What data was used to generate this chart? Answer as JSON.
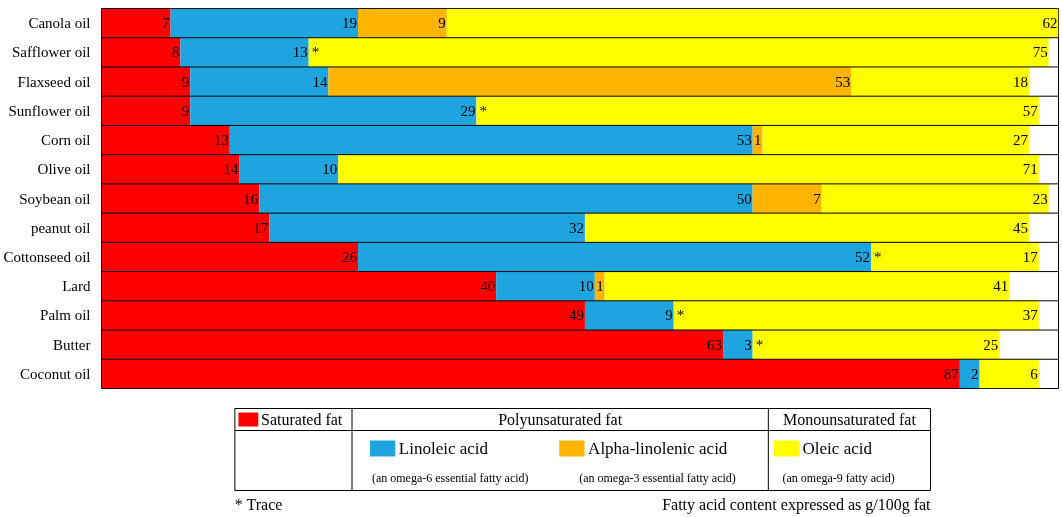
{
  "chart_data": {
    "type": "bar",
    "stacked": true,
    "orientation": "horizontal",
    "data_labels": true,
    "categories": [
      "Canola oil",
      "Safflower oil",
      "Flaxseed oil",
      "Sunflower oil",
      "Corn oil",
      "Olive oil",
      "Soybean oil",
      "peanut oil",
      "Cottonseed oil",
      "Lard",
      "Palm oil",
      "Butter",
      "Coconut oil"
    ],
    "series": [
      {
        "name": "Saturated fat",
        "color": "#ff0000",
        "values": [
          7,
          8,
          9,
          9,
          13,
          14,
          16,
          17,
          26,
          40,
          49,
          63,
          87
        ],
        "value_labels": [
          "7",
          "8",
          "9",
          "9",
          "13",
          "14",
          "16",
          "17",
          "26",
          "40",
          "49",
          "63",
          "87"
        ]
      },
      {
        "name": "Linoleic acid",
        "color": "#1ea5e0",
        "values": [
          19,
          13,
          14,
          29,
          53,
          10,
          50,
          32,
          52,
          10,
          9,
          3,
          2
        ],
        "value_labels": [
          "19",
          "13",
          "14",
          "29",
          "53",
          "10",
          "50",
          "32",
          "52",
          "10",
          "9",
          "3",
          "2"
        ]
      },
      {
        "name": "Alpha-linolenic acid",
        "color": "#ffb400",
        "values": [
          9,
          null,
          53,
          null,
          1,
          null,
          7,
          null,
          null,
          1,
          null,
          null,
          null
        ],
        "value_labels": [
          "9",
          "*",
          "53",
          "*",
          "1",
          null,
          "7",
          null,
          "*",
          "1",
          "*",
          "*",
          null
        ]
      },
      {
        "name": "Oleic acid",
        "color": "#ffff00",
        "values": [
          62,
          75,
          18,
          57,
          27,
          71,
          23,
          45,
          17,
          41,
          37,
          25,
          6
        ],
        "value_labels": [
          "62",
          "75",
          "18",
          "57",
          "27",
          "71",
          "23",
          "45",
          "17",
          "41",
          "37",
          "25",
          "6"
        ]
      }
    ],
    "legend": "bottom",
    "annotations": [
      "Polyunsaturated fat",
      "Monounsaturated fat",
      "(an omega-6 essential fatty acid)",
      "(an omega-3 essential fatty acid)",
      "(an omega-9 fatty acid)",
      "* Trace",
      "Fatty acid content expressed as g/100g fat"
    ]
  }
}
